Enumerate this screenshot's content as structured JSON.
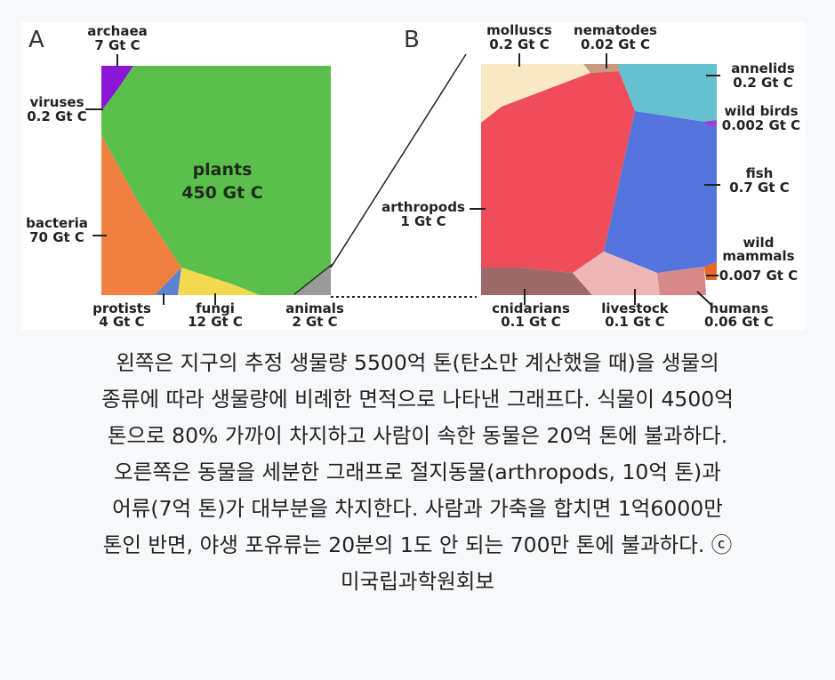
{
  "panel_a": {
    "letter": "A",
    "archaea": {
      "name": "archaea",
      "value": "7 Gt C"
    },
    "viruses": {
      "name": "viruses",
      "value": "0.2 Gt C"
    },
    "plants": {
      "name": "plants",
      "value": "450 Gt C"
    },
    "bacteria": {
      "name": "bacteria",
      "value": "70 Gt C"
    },
    "protists": {
      "name": "protists",
      "value": "4 Gt C"
    },
    "fungi": {
      "name": "fungi",
      "value": "12 Gt C"
    },
    "animals": {
      "name": "animals",
      "value": "2 Gt C"
    }
  },
  "panel_b": {
    "letter": "B",
    "molluscs": {
      "name": "molluscs",
      "value": "0.2 Gt C"
    },
    "nematodes": {
      "name": "nematodes",
      "value": "0.02 Gt C"
    },
    "annelids": {
      "name": "annelids",
      "value": "0.2 Gt C"
    },
    "wild_birds": {
      "name": "wild birds",
      "value": "0.002 Gt C"
    },
    "fish": {
      "name": "fish",
      "value": "0.7 Gt C"
    },
    "arthropods": {
      "name": "arthropods",
      "value": "1 Gt C"
    },
    "wild_mammals": {
      "name1": "wild",
      "name2": "mammals",
      "value": "0.007 Gt C"
    },
    "cnidarians": {
      "name": "cnidarians",
      "value": "0.1 Gt C"
    },
    "livestock": {
      "name": "livestock",
      "value": "0.1 Gt C"
    },
    "humans": {
      "name": "humans",
      "value": "0.06 Gt C"
    }
  },
  "caption": {
    "lines": [
      "왼쪽은 지구의 추정 생물량 5500억 톤(탄소만 계산했을 때)을 생물의",
      "종류에 따라 생물량에 비례한 면적으로 나타낸 그래프다. 식물이 4500억",
      "톤으로 80% 가까이 차지하고 사람이 속한 동물은 20억 톤에 불과하다.",
      "오른쪽은 동물을 세분한 그래프로 절지동물(arthropods, 10억 톤)과",
      "어류(7억 톤)가 대부분을 차지한다. 사람과 가축을 합치면 1억6000만",
      "톤인 반면, 야생 포유류는 20분의 1도 안 되는 700만 톤에 불과하다. ⓒ",
      "미국립과학원회보"
    ]
  },
  "colors": {
    "plants": "#5bbf4b",
    "bacteria": "#f08040",
    "archaea": "#8b16d6",
    "protists": "#5a82d0",
    "fungi": "#f4d84e",
    "animals": "#9a9a9a",
    "arthropods": "#ef4d5a",
    "fish": "#5474de",
    "annelids": "#66c0d0",
    "molluscs": "#f8e8c4",
    "nematodes": "#c49a80",
    "cnidarians": "#9c6868",
    "livestock": "#eeb6b6",
    "humans": "#d88888",
    "wild_mammals": "#e86820",
    "wild_birds": "#9a44d4"
  }
}
